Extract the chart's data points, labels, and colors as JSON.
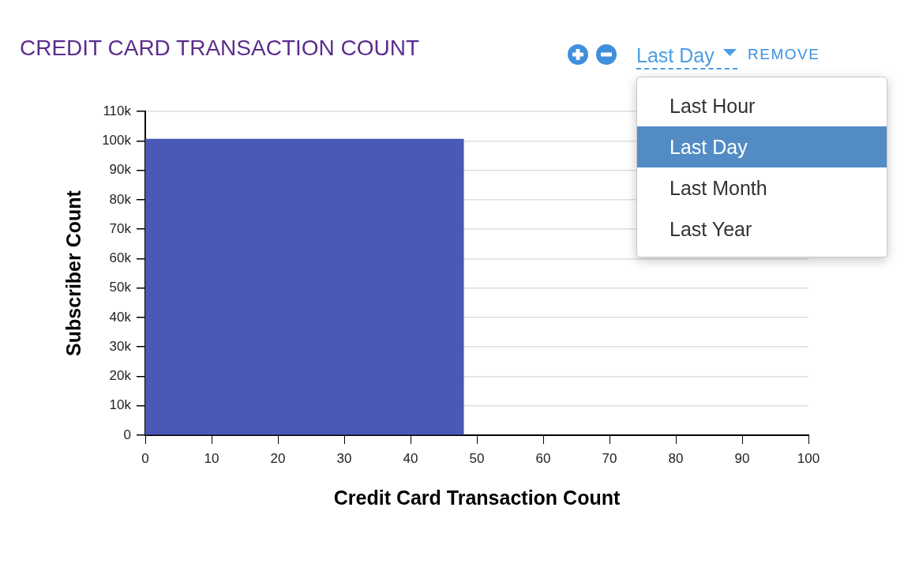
{
  "chart_data": {
    "type": "histogram",
    "title": "CREDIT CARD TRANSACTION COUNT",
    "xlabel": "Credit Card Transaction Count",
    "ylabel": "Subscriber Count",
    "bins": [
      0,
      48
    ],
    "values": [
      100600
    ],
    "color": "#4a58b6",
    "xlim": [
      0,
      100
    ],
    "xticks": [
      0,
      10,
      20,
      30,
      40,
      50,
      60,
      70,
      80,
      90,
      100
    ],
    "ylim": [
      0,
      110000
    ],
    "yticks": [
      0,
      {
        "value": 10000,
        "label": "10k"
      },
      {
        "value": 20000,
        "label": "20k"
      },
      {
        "value": 30000,
        "label": "30k"
      },
      {
        "value": 40000,
        "label": "40k"
      },
      {
        "value": 50000,
        "label": "50k"
      },
      {
        "value": 60000,
        "label": "60k"
      },
      {
        "value": 70000,
        "label": "70k"
      },
      {
        "value": 80000,
        "label": "80k"
      },
      {
        "value": 90000,
        "label": "90k"
      },
      {
        "value": 100000,
        "label": "100k"
      },
      {
        "value": 110000,
        "label": "110k"
      }
    ],
    "grid": "y",
    "annotations": [
      "Last Day",
      "REMOVE",
      "Last Hour",
      "Last Day",
      "Last Month",
      "Last Year"
    ]
  }
}
